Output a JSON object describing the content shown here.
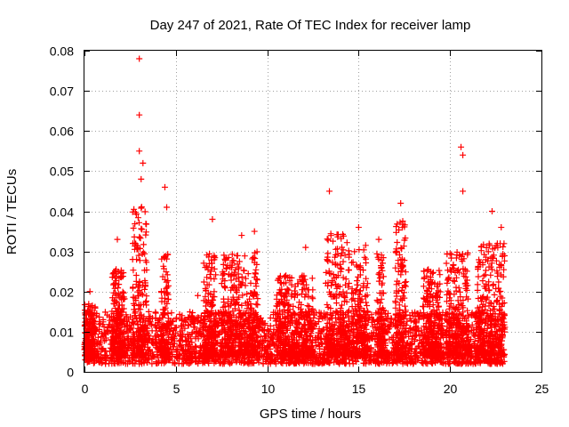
{
  "chart_data": {
    "type": "scatter",
    "title": "Day 247 of 2021, Rate Of TEC Index for receiver lamp",
    "xlabel": "GPS time / hours",
    "ylabel": "ROTI / TECUs",
    "xlim": [
      0,
      25
    ],
    "ylim": [
      0,
      0.08
    ],
    "x_ticks": [
      0,
      5,
      10,
      15,
      20,
      25
    ],
    "x_tick_labels": [
      "0",
      "5",
      "10",
      "15",
      "20",
      "25"
    ],
    "y_ticks": [
      0,
      0.01,
      0.02,
      0.03,
      0.04,
      0.05,
      0.06,
      0.07,
      0.08
    ],
    "y_tick_labels": [
      "0",
      "0.01",
      "0.02",
      "0.03",
      "0.04",
      "0.05",
      "0.06",
      "0.07",
      "0.08"
    ],
    "grid": true,
    "marker": "+",
    "color": "#ff0000",
    "series": [
      {
        "name": "ROTI",
        "x_range": [
          0,
          23
        ],
        "typical_y_range": [
          0.002,
          0.015
        ],
        "notable_points": [
          {
            "x": 3.0,
            "y": 0.078
          },
          {
            "x": 3.0,
            "y": 0.064
          },
          {
            "x": 3.0,
            "y": 0.055
          },
          {
            "x": 3.2,
            "y": 0.052
          },
          {
            "x": 3.1,
            "y": 0.048
          },
          {
            "x": 4.4,
            "y": 0.046
          },
          {
            "x": 4.5,
            "y": 0.041
          },
          {
            "x": 13.4,
            "y": 0.045
          },
          {
            "x": 20.6,
            "y": 0.056
          },
          {
            "x": 20.7,
            "y": 0.054
          },
          {
            "x": 20.7,
            "y": 0.045
          },
          {
            "x": 22.3,
            "y": 0.04
          },
          {
            "x": 17.3,
            "y": 0.042
          },
          {
            "x": 7.0,
            "y": 0.038
          },
          {
            "x": 9.3,
            "y": 0.035
          },
          {
            "x": 15.0,
            "y": 0.036
          },
          {
            "x": 22.8,
            "y": 0.036
          },
          {
            "x": 1.8,
            "y": 0.033
          },
          {
            "x": 8.6,
            "y": 0.034
          },
          {
            "x": 16.1,
            "y": 0.033
          },
          {
            "x": 12.1,
            "y": 0.031
          },
          {
            "x": 0.3,
            "y": 0.02
          },
          {
            "x": 6.2,
            "y": 0.019
          },
          {
            "x": 10.9,
            "y": 0.022
          }
        ],
        "clusters": [
          {
            "x": [
              0.0,
              0.6
            ],
            "y_max": 0.017
          },
          {
            "x": [
              1.5,
              2.2
            ],
            "y_max": 0.026
          },
          {
            "x": [
              2.6,
              3.4
            ],
            "y_max": 0.042
          },
          {
            "x": [
              4.2,
              4.6
            ],
            "y_max": 0.03
          },
          {
            "x": [
              6.5,
              7.2
            ],
            "y_max": 0.03
          },
          {
            "x": [
              7.5,
              9.5
            ],
            "y_max": 0.03
          },
          {
            "x": [
              10.5,
              12.5
            ],
            "y_max": 0.024
          },
          {
            "x": [
              13.2,
              14.5
            ],
            "y_max": 0.035
          },
          {
            "x": [
              14.6,
              15.5
            ],
            "y_max": 0.032
          },
          {
            "x": [
              16.0,
              16.4
            ],
            "y_max": 0.03
          },
          {
            "x": [
              17.0,
              17.6
            ],
            "y_max": 0.038
          },
          {
            "x": [
              18.5,
              19.5
            ],
            "y_max": 0.026
          },
          {
            "x": [
              19.8,
              21.0
            ],
            "y_max": 0.03
          },
          {
            "x": [
              21.5,
              23.0
            ],
            "y_max": 0.032
          }
        ]
      }
    ]
  }
}
